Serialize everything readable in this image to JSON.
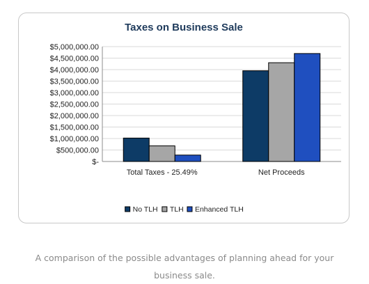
{
  "chart_data": {
    "type": "bar",
    "title": "Taxes on Business Sale",
    "categories": [
      "Total Taxes - 25.49%",
      "Net Proceeds"
    ],
    "series": [
      {
        "name": "No TLH",
        "values": [
          1020000,
          3950000
        ],
        "color": "#0d3b66"
      },
      {
        "name": "TLH",
        "values": [
          680000,
          4300000
        ],
        "color": "#a6a6a6"
      },
      {
        "name": "Enhanced TLH",
        "values": [
          280000,
          4700000
        ],
        "color": "#1f4fbf"
      }
    ],
    "ylim": [
      0,
      5000000
    ],
    "yticks": [
      0,
      500000,
      1000000,
      1500000,
      2000000,
      2500000,
      3000000,
      3500000,
      4000000,
      4500000,
      5000000
    ],
    "ytick_labels": [
      "$-",
      "$500,000.00",
      "$1,000,000.00",
      "$1,500,000.00",
      "$2,000,000.00",
      "$2,500,000.00",
      "$3,000,000.00",
      "$3,500,000.00",
      "$4,000,000.00",
      "$4,500,000.00",
      "$5,000,000.00"
    ],
    "grid": true,
    "legend_position": "bottom"
  },
  "caption": "A comparison of the possible advantages of planning ahead for your business sale."
}
